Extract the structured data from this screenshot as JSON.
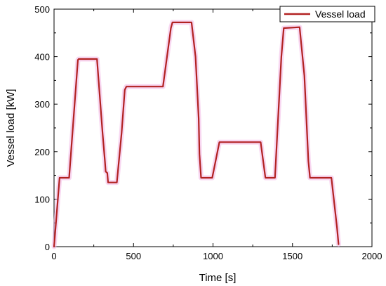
{
  "chart_data": {
    "type": "line",
    "xlabel": "Time [s]",
    "ylabel": "Vessel load [kW]",
    "xlim": [
      0,
      2000
    ],
    "ylim": [
      0,
      500
    ],
    "xticks": [
      0,
      500,
      1000,
      1500,
      2000
    ],
    "yticks": [
      0,
      100,
      200,
      300,
      400,
      500
    ],
    "grid": false,
    "legend_position": "top-right",
    "series": [
      {
        "name": "Vessel load",
        "color": "#b22222",
        "points": [
          [
            0,
            0
          ],
          [
            35,
            145
          ],
          [
            95,
            145
          ],
          [
            150,
            393
          ],
          [
            155,
            395
          ],
          [
            270,
            395
          ],
          [
            305,
            240
          ],
          [
            320,
            180
          ],
          [
            325,
            158
          ],
          [
            335,
            155
          ],
          [
            340,
            135
          ],
          [
            395,
            135
          ],
          [
            425,
            240
          ],
          [
            445,
            330
          ],
          [
            455,
            337
          ],
          [
            685,
            337
          ],
          [
            735,
            460
          ],
          [
            745,
            472
          ],
          [
            865,
            472
          ],
          [
            890,
            400
          ],
          [
            910,
            270
          ],
          [
            915,
            195
          ],
          [
            925,
            145
          ],
          [
            995,
            145
          ],
          [
            1040,
            220
          ],
          [
            1300,
            220
          ],
          [
            1330,
            145
          ],
          [
            1390,
            145
          ],
          [
            1430,
            400
          ],
          [
            1445,
            460
          ],
          [
            1545,
            462
          ],
          [
            1575,
            360
          ],
          [
            1600,
            180
          ],
          [
            1610,
            145
          ],
          [
            1745,
            145
          ],
          [
            1780,
            40
          ],
          [
            1790,
            5
          ]
        ]
      }
    ]
  }
}
